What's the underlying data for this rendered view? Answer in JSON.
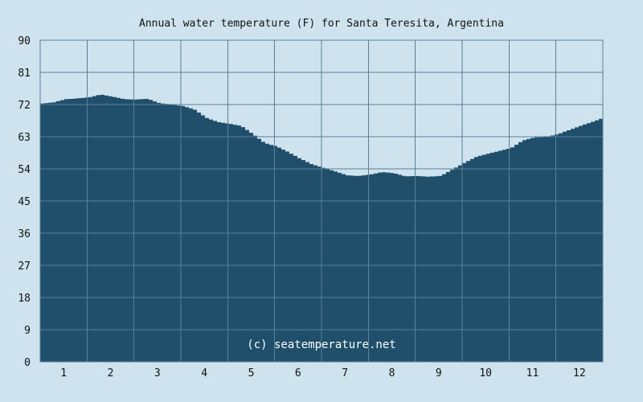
{
  "chart_data": {
    "type": "area",
    "title": "Annual water temperature (F) for Santa Teresita, Argentina",
    "xlabel": "",
    "ylabel": "",
    "ylim": [
      0,
      90
    ],
    "y_ticks": [
      0,
      9,
      18,
      27,
      36,
      45,
      54,
      63,
      72,
      81,
      90
    ],
    "x_ticks": [
      "1",
      "2",
      "3",
      "4",
      "5",
      "6",
      "7",
      "8",
      "9",
      "10",
      "11",
      "12"
    ],
    "grid": true,
    "legend": "none",
    "x": [
      0.0,
      0.25,
      0.5,
      0.75,
      1.0,
      1.25,
      1.5,
      1.75,
      2.0,
      2.25,
      2.5,
      2.75,
      3.0,
      3.25,
      3.5,
      3.75,
      4.0,
      4.25,
      4.5,
      4.75,
      5.0,
      5.25,
      5.5,
      5.75,
      6.0,
      6.25,
      6.5,
      6.75,
      7.0,
      7.25,
      7.5,
      7.75,
      8.0,
      8.25,
      8.5,
      8.75,
      9.0,
      9.25,
      9.5,
      9.75,
      10.0,
      10.25,
      10.5,
      10.75,
      11.0,
      11.25,
      11.5,
      11.75,
      12.0
    ],
    "series": [
      {
        "values": [
          72.3,
          72.6,
          73.5,
          73.7,
          74.0,
          74.8,
          74.2,
          73.5,
          73.4,
          73.6,
          72.4,
          72.0,
          71.6,
          70.6,
          68.3,
          67.1,
          66.6,
          66.0,
          63.7,
          61.2,
          60.3,
          58.7,
          56.9,
          55.3,
          54.3,
          53.3,
          52.2,
          52.0,
          52.4,
          53.1,
          52.8,
          51.9,
          52.0,
          51.8,
          52.0,
          53.8,
          55.6,
          57.3,
          58.2,
          59.0,
          59.8,
          61.9,
          62.8,
          62.9,
          63.7,
          64.9,
          66.1,
          67.2,
          68.4
        ]
      }
    ],
    "colors": {
      "background": "#cfe3ee",
      "area_fill": "#1f4f6b",
      "grid_line": "#5a7f99",
      "frame": "#5a7f99"
    },
    "watermark": "(c) seatemperature.net"
  }
}
